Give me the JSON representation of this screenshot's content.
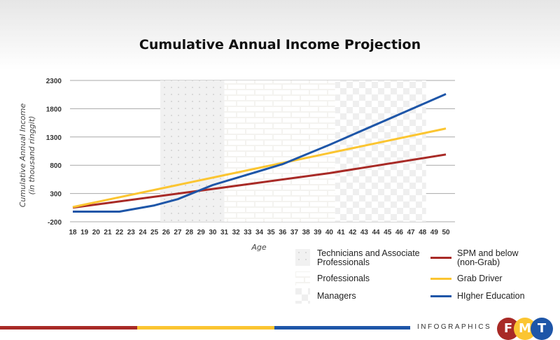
{
  "chart_data": {
    "type": "line",
    "title": "Cumulative Annual Income Projection",
    "xlabel": "Age",
    "ylabel": [
      "Cumulative Annual Income",
      "(in thousand ringgit)"
    ],
    "xlim": [
      18,
      50
    ],
    "ylim": [
      -200,
      2300
    ],
    "yticks": [
      -200,
      300,
      800,
      1300,
      1800,
      2300
    ],
    "xticks": [
      18,
      19,
      20,
      21,
      22,
      23,
      24,
      25,
      26,
      27,
      28,
      29,
      30,
      31,
      32,
      33,
      34,
      35,
      36,
      37,
      38,
      39,
      40,
      41,
      42,
      43,
      44,
      45,
      46,
      47,
      48,
      49,
      50
    ],
    "grid": "horizontal",
    "legend_placement": "bottom-right",
    "bands": [
      {
        "name": "Technicians and Associate Professionals",
        "from": 25.5,
        "to": 31,
        "pattern": "dots"
      },
      {
        "name": "Professionals",
        "from": 31,
        "to": 40.5,
        "pattern": "bricks"
      },
      {
        "name": "Managers",
        "from": 40.5,
        "to": 48.3,
        "pattern": "checker"
      }
    ],
    "series": [
      {
        "name": "SPM and below (non-Grab)",
        "color": "#a82a26",
        "x": [
          18,
          30,
          40,
          50
        ],
        "values": [
          50,
          380,
          660,
          990
        ]
      },
      {
        "name": "Grab Driver",
        "color": "#fbc531",
        "x": [
          18,
          50
        ],
        "values": [
          60,
          1450
        ]
      },
      {
        "name": "HIgher Education",
        "color": "#1e56a8",
        "x": [
          18,
          22,
          25,
          27,
          30,
          36,
          40,
          50
        ],
        "values": [
          -20,
          -20,
          90,
          200,
          450,
          820,
          1160,
          2060
        ]
      }
    ]
  },
  "legend": {
    "bands": [
      "Technicians and Associate Professionals",
      "Professionals",
      "Managers"
    ],
    "lines": [
      "SPM and below (non-Grab)",
      "Grab Driver",
      "HIgher Education"
    ]
  },
  "footer": {
    "text": "INFOGRAPHICS",
    "logo_letters": [
      "F",
      "M",
      "T"
    ],
    "colors": [
      "#a82a26",
      "#fbc531",
      "#1e56a8"
    ]
  }
}
